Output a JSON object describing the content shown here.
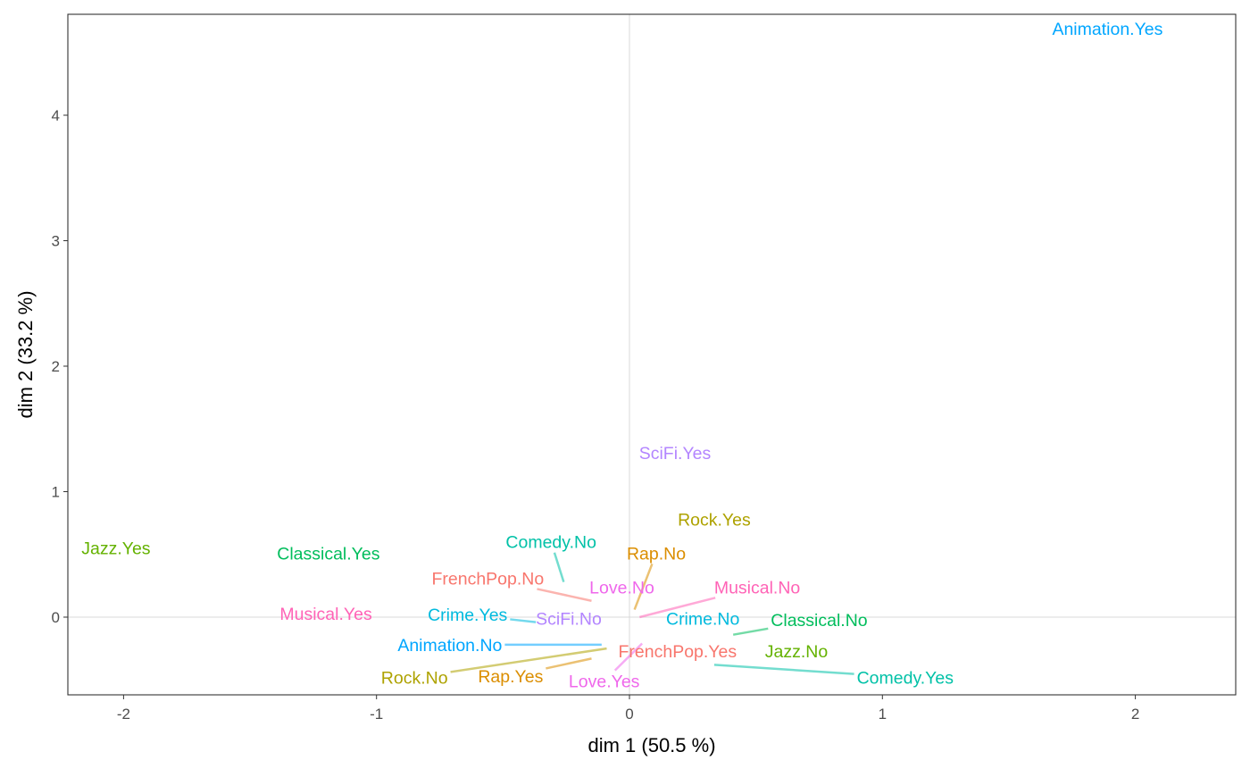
{
  "chart_data": {
    "type": "scatter",
    "title": "",
    "xlabel": "dim 1 (50.5 %)",
    "ylabel": "dim 2 (33.2 %)",
    "xlim": [
      -2.22,
      2.4
    ],
    "ylim": [
      -0.62,
      4.8
    ],
    "xticks": [
      -2,
      -1,
      0,
      1,
      2
    ],
    "yticks": [
      0,
      1,
      2,
      3,
      4
    ],
    "xtick_labels": [
      "-2",
      "-1",
      "0",
      "1",
      "2"
    ],
    "ytick_labels": [
      "0",
      "1",
      "2",
      "3",
      "4"
    ],
    "grid": false,
    "reference_lines": {
      "x": 0,
      "y": 0
    },
    "colors": {
      "FrenchPop": "#F8766D",
      "Rap": "#DB8E00",
      "Rock": "#AEA200",
      "Jazz": "#64B200",
      "Classical": "#00BD5C",
      "Comedy": "#00C1A7",
      "Crime": "#00BADE",
      "Animation": "#00A6FF",
      "SciFi": "#B385FF",
      "Love": "#EF67EB",
      "Musical": "#FF63B6"
    },
    "points": [
      {
        "label": "Animation.Yes",
        "group": "Animation",
        "x": 1.89,
        "y": 4.69,
        "label_x": 1.89,
        "label_y": 4.69
      },
      {
        "label": "Jazz.Yes",
        "group": "Jazz",
        "x": -2.03,
        "y": 0.55,
        "label_x": -2.03,
        "label_y": 0.55
      },
      {
        "label": "Classical.Yes",
        "group": "Classical",
        "x": -1.19,
        "y": 0.51,
        "label_x": -1.19,
        "label_y": 0.51
      },
      {
        "label": "Musical.Yes",
        "group": "Musical",
        "x": -1.2,
        "y": 0.03,
        "label_x": -1.2,
        "label_y": 0.03
      },
      {
        "label": "SciFi.Yes",
        "group": "SciFi",
        "x": 0.18,
        "y": 1.31,
        "label_x": 0.18,
        "label_y": 1.31
      },
      {
        "label": "Rock.Yes",
        "group": "Rock",
        "x": 0.335,
        "y": 0.78,
        "label_x": 0.335,
        "label_y": 0.78
      },
      {
        "label": "Comedy.No",
        "group": "Comedy",
        "x": -0.26,
        "y": 0.28,
        "label_x": -0.31,
        "label_y": 0.6
      },
      {
        "label": "Rap.No",
        "group": "Rap",
        "x": 0.02,
        "y": 0.06,
        "label_x": 0.106,
        "label_y": 0.51
      },
      {
        "label": "FrenchPop.No",
        "group": "FrenchPop",
        "x": -0.15,
        "y": 0.13,
        "label_x": -0.56,
        "label_y": 0.31
      },
      {
        "label": "Love.No",
        "group": "Love",
        "x": -0.03,
        "y": 0.24,
        "label_x": -0.03,
        "label_y": 0.24
      },
      {
        "label": "Musical.No",
        "group": "Musical",
        "x": 0.04,
        "y": 0.0,
        "label_x": 0.505,
        "label_y": 0.24
      },
      {
        "label": "Crime.Yes",
        "group": "Crime",
        "x": -0.37,
        "y": -0.04,
        "label_x": -0.64,
        "label_y": 0.02
      },
      {
        "label": "SciFi.No",
        "group": "SciFi",
        "x": -0.24,
        "y": -0.01,
        "label_x": -0.24,
        "label_y": -0.01
      },
      {
        "label": "Crime.No",
        "group": "Crime",
        "x": 0.29,
        "y": -0.01,
        "label_x": 0.29,
        "label_y": -0.01
      },
      {
        "label": "Classical.No",
        "group": "Classical",
        "x": 0.41,
        "y": -0.14,
        "label_x": 0.75,
        "label_y": -0.02
      },
      {
        "label": "Animation.No",
        "group": "Animation",
        "x": -0.11,
        "y": -0.22,
        "label_x": -0.71,
        "label_y": -0.22
      },
      {
        "label": "FrenchPop.Yes",
        "group": "FrenchPop",
        "x": 0.19,
        "y": -0.27,
        "label_x": 0.19,
        "label_y": -0.27
      },
      {
        "label": "Jazz.No",
        "group": "Jazz",
        "x": 0.66,
        "y": -0.27,
        "label_x": 0.66,
        "label_y": -0.27
      },
      {
        "label": "Comedy.Yes",
        "group": "Comedy",
        "x": 0.335,
        "y": -0.38,
        "label_x": 1.09,
        "label_y": -0.48
      },
      {
        "label": "Rock.No",
        "group": "Rock",
        "x": -0.09,
        "y": -0.25,
        "label_x": -0.85,
        "label_y": -0.48
      },
      {
        "label": "Rap.Yes",
        "group": "Rap",
        "x": -0.15,
        "y": -0.33,
        "label_x": -0.47,
        "label_y": -0.47
      },
      {
        "label": "Love.Yes",
        "group": "Love",
        "x": 0.05,
        "y": -0.21,
        "label_x": -0.1,
        "label_y": -0.51
      }
    ]
  }
}
